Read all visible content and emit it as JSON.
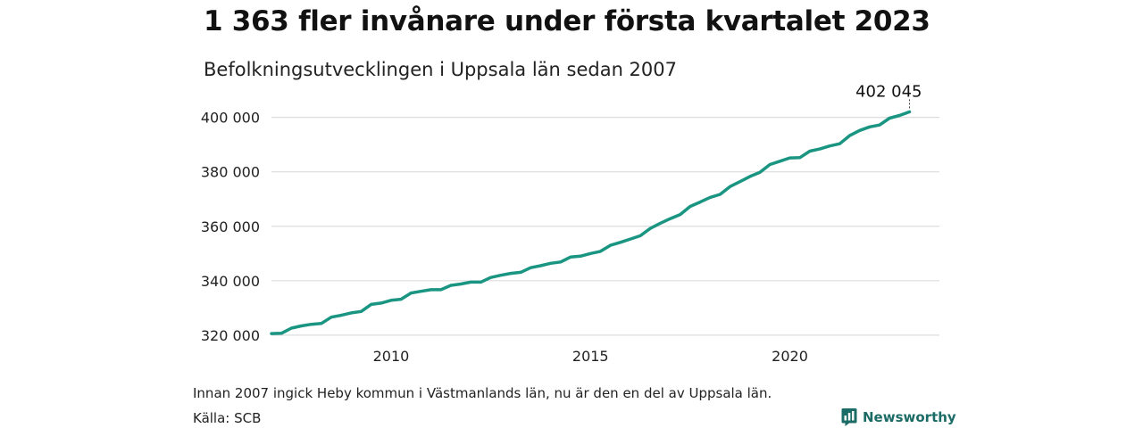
{
  "header": {
    "title": "1 363 fler invånare under första kvartalet 2023",
    "subtitle": "Befolkningsutvecklingen i Uppsala län sedan 2007"
  },
  "footer": {
    "note": "Innan 2007 ingick Heby kommun i Västmanlands län, nu är den en del av Uppsala län.",
    "source": "Källa: SCB",
    "brand": "Newsworthy"
  },
  "colors": {
    "line": "#1a9582",
    "grid": "#dddddd",
    "brand": "#1b6b66"
  },
  "icons": {
    "brand_logo": "newsworthy-logo-icon"
  },
  "chart_data": {
    "type": "line",
    "title": "1 363 fler invånare under första kvartalet 2023",
    "subtitle": "Befolkningsutvecklingen i Uppsala län sedan 2007",
    "xlabel": "",
    "ylabel": "",
    "xlim": [
      2007.0,
      2023.75
    ],
    "ylim": [
      318000,
      402500
    ],
    "x_ticks": [
      2010,
      2015,
      2020
    ],
    "x_tick_labels": [
      "2010",
      "2015",
      "2020"
    ],
    "y_ticks": [
      320000,
      340000,
      360000,
      380000,
      400000
    ],
    "y_tick_labels": [
      "320 000",
      "340 000",
      "360 000",
      "380 000",
      "400 000"
    ],
    "grid": "horizontal",
    "end_label": "402 045",
    "series": [
      {
        "x": [
          2007.0,
          2007.25,
          2007.5,
          2007.75,
          2008.0,
          2008.25,
          2008.5,
          2008.75,
          2009.0,
          2009.25,
          2009.5,
          2009.75,
          2010.0,
          2010.25,
          2010.5,
          2010.75,
          2011.0,
          2011.25,
          2011.5,
          2011.75,
          2012.0,
          2012.25,
          2012.5,
          2012.75,
          2013.0,
          2013.25,
          2013.5,
          2013.75,
          2014.0,
          2014.25,
          2014.5,
          2014.75,
          2015.0,
          2015.25,
          2015.5,
          2015.75,
          2016.0,
          2016.25,
          2016.5,
          2016.75,
          2017.0,
          2017.25,
          2017.5,
          2017.75,
          2018.0,
          2018.25,
          2018.5,
          2018.75,
          2019.0,
          2019.25,
          2019.5,
          2019.75,
          2020.0,
          2020.25,
          2020.5,
          2020.75,
          2021.0,
          2021.25,
          2021.5,
          2021.75,
          2022.0,
          2022.25,
          2022.5,
          2022.75,
          2023.0
        ],
        "values": [
          320600,
          320700,
          322600,
          323400,
          324000,
          324300,
          326600,
          327300,
          328200,
          328700,
          331300,
          331800,
          332800,
          333200,
          335500,
          336100,
          336700,
          336700,
          338300,
          338800,
          339500,
          339500,
          341200,
          342000,
          342700,
          343100,
          344800,
          345500,
          346400,
          346900,
          348700,
          349000,
          350000,
          350800,
          353000,
          354100,
          355300,
          356500,
          359200,
          361100,
          362800,
          364300,
          367300,
          368900,
          370600,
          371700,
          374600,
          376400,
          378300,
          379800,
          382700,
          383900,
          385100,
          385200,
          387600,
          388400,
          389500,
          390300,
          393300,
          395200,
          396500,
          397200,
          399700,
          400700,
          402045
        ]
      }
    ]
  }
}
